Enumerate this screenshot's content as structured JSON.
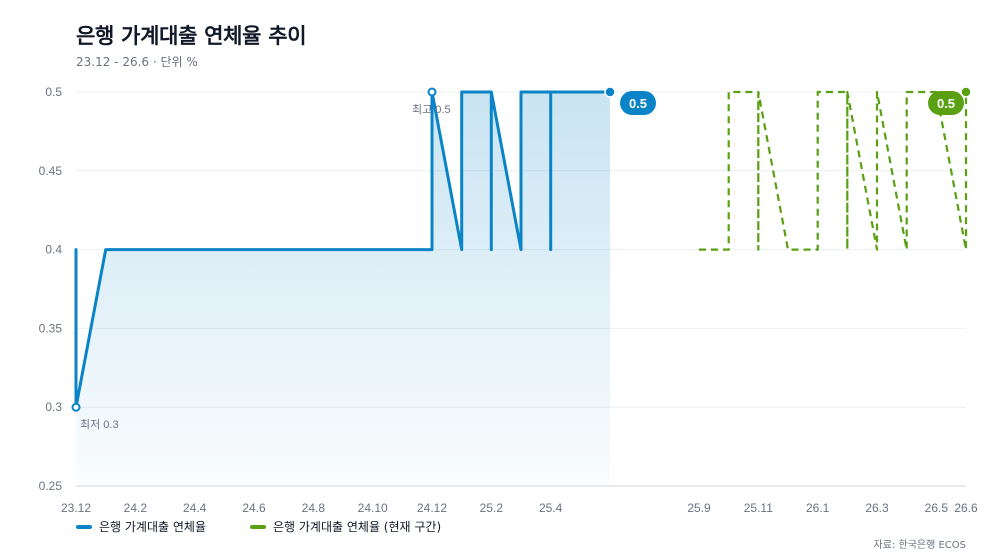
{
  "header": {
    "title": "은행 가계대출 연체율 추이",
    "subtitle": "23.12 - 26.6 · 단위 %"
  },
  "legend": {
    "items": [
      {
        "label": "은행 가계대출 연체율",
        "color": "#0a84c6"
      },
      {
        "label": "은행 가계대출 연체율 (현재 구간)",
        "color": "#5aa012"
      }
    ]
  },
  "source": "자료: 한국은행 ECOS",
  "annotations": {
    "min_label": "최저 0.3",
    "max_label": "최고 0.5",
    "badge_actual": "0.5",
    "badge_current": "0.5"
  },
  "chart_data": {
    "type": "line",
    "title": "은행 가계대출 연체율 추이",
    "xlabel": "",
    "ylabel": "",
    "ylim": [
      0.25,
      0.5
    ],
    "yticks": [
      0.25,
      0.3,
      0.35,
      0.4,
      0.45,
      0.5
    ],
    "xlim": [
      "23.12",
      "26.6"
    ],
    "xticks": [
      "23.12",
      "24.2",
      "24.4",
      "24.6",
      "24.8",
      "24.10",
      "24.12",
      "25.2",
      "25.4",
      "25.9",
      "25.11",
      "26.1",
      "26.3",
      "26.5",
      "26.6"
    ],
    "grid": true,
    "legend_position": "bottom-left",
    "series": [
      {
        "name": "은행 가계대출 연체율",
        "color": "#0a84c6",
        "style": "solid-area",
        "points": [
          [
            "23.12",
            0.4
          ],
          [
            "23.12",
            0.3
          ],
          [
            "24.1",
            0.4
          ],
          [
            "24.11",
            0.4
          ],
          [
            "24.12",
            0.4
          ],
          [
            "24.12",
            0.5
          ],
          [
            "25.1",
            0.4
          ],
          [
            "25.1",
            0.5
          ],
          [
            "25.2",
            0.5
          ],
          [
            "25.2",
            0.4
          ],
          [
            "25.2",
            0.5
          ],
          [
            "25.3",
            0.4
          ],
          [
            "25.3",
            0.5
          ],
          [
            "25.4",
            0.5
          ],
          [
            "25.4",
            0.4
          ],
          [
            "25.4",
            0.5
          ],
          [
            "25.6",
            0.5
          ]
        ]
      },
      {
        "name": "은행 가계대출 연체율 (현재 구간)",
        "color": "#5aa012",
        "style": "dashed",
        "points": [
          [
            "25.9",
            0.4
          ],
          [
            "25.10",
            0.4
          ],
          [
            "25.10",
            0.5
          ],
          [
            "25.11",
            0.5
          ],
          [
            "25.11",
            0.4
          ],
          [
            "25.11",
            0.5
          ],
          [
            "25.12",
            0.4
          ],
          [
            "26.1",
            0.4
          ],
          [
            "26.1",
            0.5
          ],
          [
            "26.2",
            0.5
          ],
          [
            "26.2",
            0.4
          ],
          [
            "26.2",
            0.5
          ],
          [
            "26.3",
            0.4
          ],
          [
            "26.3",
            0.5
          ],
          [
            "26.4",
            0.4
          ],
          [
            "26.4",
            0.5
          ],
          [
            "26.5",
            0.5
          ],
          [
            "26.6",
            0.4
          ],
          [
            "26.6",
            0.5
          ]
        ]
      }
    ]
  }
}
